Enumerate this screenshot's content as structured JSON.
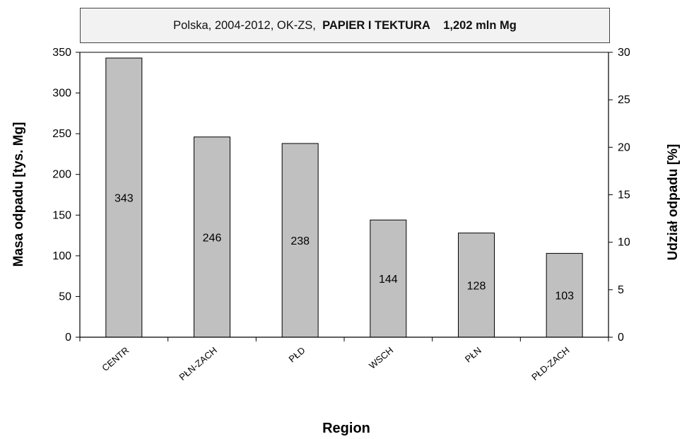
{
  "title": {
    "prefix": "Polska, 2004-2012, OK-ZS,",
    "bold_material": "PAPIER  I TEKTURA",
    "bold_total": "1,202",
    "unit": "mln Mg"
  },
  "colors": {
    "bar_fill": "#c0c0c0",
    "bar_stroke": "#000000",
    "axis": "#000000"
  },
  "chart_data": {
    "type": "bar",
    "categories": [
      "CENTR",
      "PŁN-ZACH",
      "PŁD",
      "WSCH",
      "PŁN",
      "PŁD-ZACH"
    ],
    "values": [
      343,
      246,
      238,
      144,
      128,
      103
    ],
    "data_labels": [
      "343",
      "246",
      "238",
      "144",
      "128",
      "103"
    ],
    "xlabel": "Region",
    "ylabel": "Masa odpadu  [tys. Mg]",
    "y2label": "Udział odpadu  [%]",
    "ylim": [
      0,
      350
    ],
    "y2lim": [
      0,
      30
    ],
    "yticks": [
      "0",
      "50",
      "100",
      "150",
      "200",
      "250",
      "300",
      "350"
    ],
    "y2ticks": [
      "0",
      "5",
      "10",
      "15",
      "20",
      "25",
      "30"
    ],
    "grid": false,
    "legend": "none"
  }
}
